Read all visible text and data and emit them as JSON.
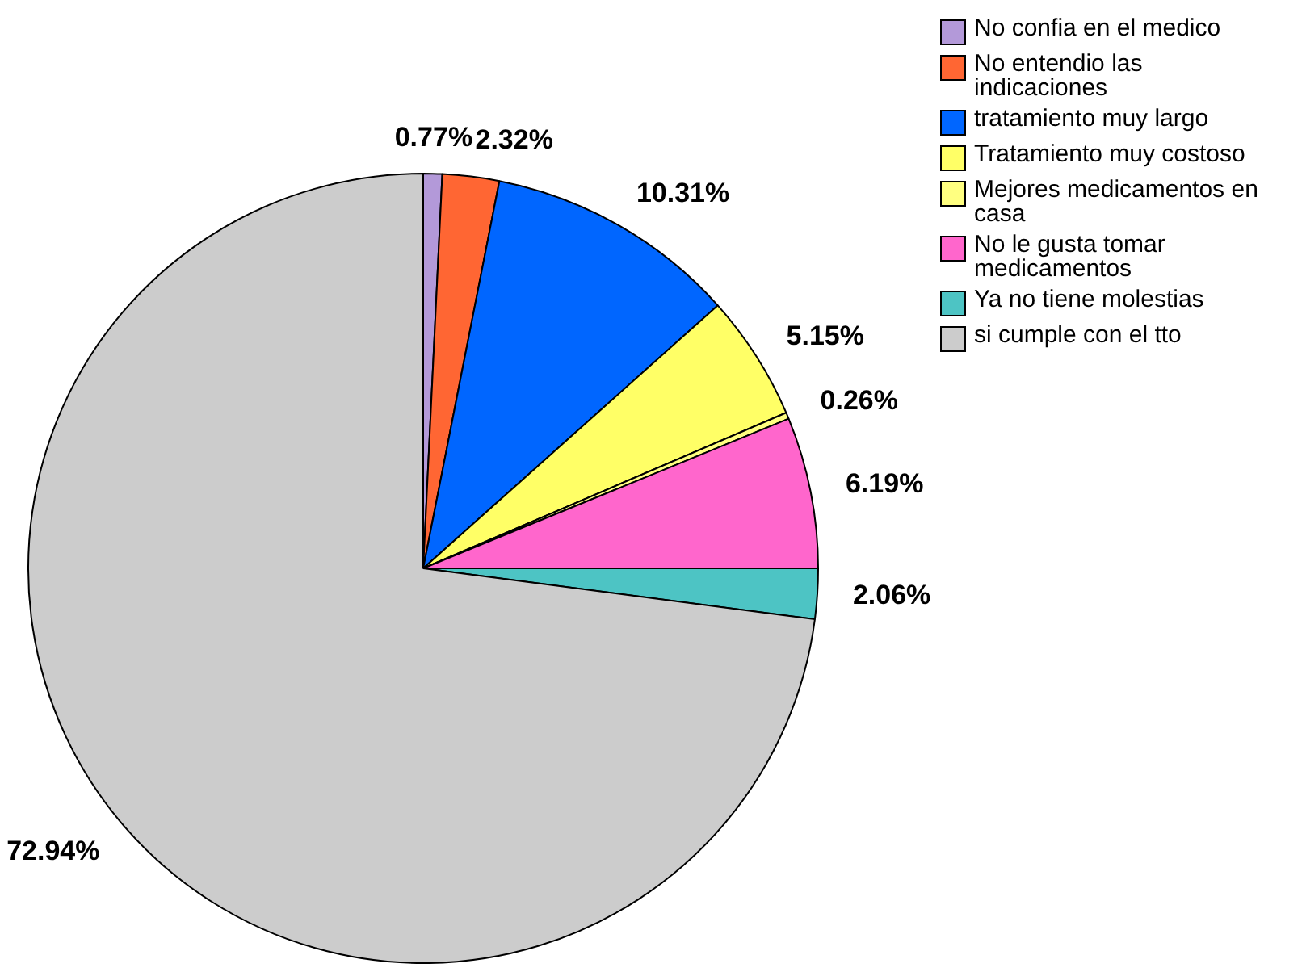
{
  "chart_data": {
    "type": "pie",
    "categories": [
      "No confia en el medico",
      "No entendio las indicaciones",
      "tratamiento muy largo",
      "Tratamiento muy costoso",
      "Mejores medicamentos en casa",
      "No le gusta tomar medicamentos",
      "Ya no tiene molestias",
      "si cumple con el tto"
    ],
    "values": [
      0.77,
      2.32,
      10.31,
      5.15,
      0.26,
      6.19,
      2.06,
      72.94
    ],
    "colors": [
      "#b399d9",
      "#ff6633",
      "#0066ff",
      "#ffff66",
      "#ffff80",
      "#ff66cc",
      "#4dc4c4",
      "#cccccc"
    ],
    "value_labels": [
      "0.77%",
      "2.32%",
      "10.31%",
      "5.15%",
      "0.26%",
      "6.19%",
      "2.06%",
      "72.94%"
    ],
    "legend": "top right"
  }
}
